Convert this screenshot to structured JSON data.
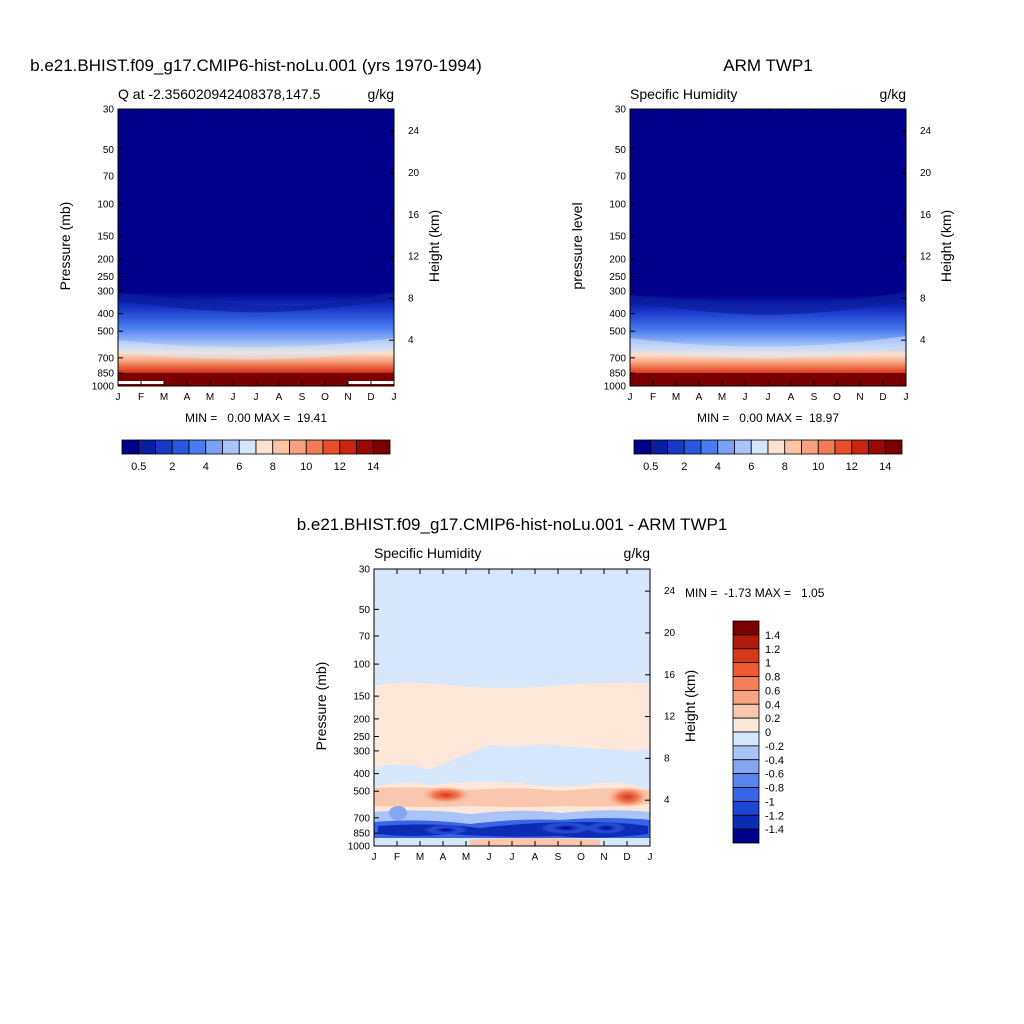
{
  "chart_data": [
    {
      "type": "heatmap",
      "title": "b.e21.BHIST.f09_g17.CMIP6-hist-noLu.001 (yrs 1970-1994)",
      "subtitle_left": "Q at -2.356020942408378,147.5",
      "subtitle_right": "g/kg",
      "ylabel": "Pressure (mb)",
      "ylabel_right": "Height (km)",
      "months": [
        "J",
        "F",
        "M",
        "A",
        "M",
        "J",
        "J",
        "A",
        "S",
        "O",
        "N",
        "D",
        "J"
      ],
      "pressure_ticks": [
        "30",
        "50",
        "70",
        "100",
        "150",
        "200",
        "250",
        "300",
        "400",
        "500",
        "700",
        "850",
        "1000"
      ],
      "height_ticks": [
        "24",
        "20",
        "16",
        "12",
        "8",
        "4"
      ],
      "stats": "MIN =   0.00 MAX =  19.41",
      "min": 0.0,
      "max": 19.41,
      "contour_levels": [
        0.5,
        1,
        2,
        3,
        4,
        5,
        6,
        7,
        8,
        9,
        10,
        11,
        12,
        13,
        14
      ],
      "colorbar_labels": [
        "0.5",
        "2",
        "4",
        "6",
        "8",
        "10",
        "12",
        "14"
      ]
    },
    {
      "type": "heatmap",
      "title": "ARM TWP1",
      "subtitle_left": "Specific Humidity",
      "subtitle_right": "g/kg",
      "ylabel": "pressure level",
      "ylabel_right": "Height (km)",
      "months": [
        "J",
        "F",
        "M",
        "A",
        "M",
        "J",
        "J",
        "A",
        "S",
        "O",
        "N",
        "D",
        "J"
      ],
      "pressure_ticks": [
        "30",
        "50",
        "70",
        "100",
        "150",
        "200",
        "250",
        "300",
        "400",
        "500",
        "700",
        "850",
        "1000"
      ],
      "height_ticks": [
        "24",
        "20",
        "16",
        "12",
        "8",
        "4"
      ],
      "stats": "MIN =   0.00 MAX =  18.97",
      "min": 0.0,
      "max": 18.97,
      "contour_levels": [
        0.5,
        1,
        2,
        3,
        4,
        5,
        6,
        7,
        8,
        9,
        10,
        11,
        12,
        13,
        14
      ],
      "colorbar_labels": [
        "0.5",
        "2",
        "4",
        "6",
        "8",
        "10",
        "12",
        "14"
      ]
    },
    {
      "type": "heatmap",
      "title": "b.e21.BHIST.f09_g17.CMIP6-hist-noLu.001 - ARM TWP1",
      "subtitle_left": "Specific Humidity",
      "subtitle_right": "g/kg",
      "ylabel": "Pressure (mb)",
      "ylabel_right": "Height (km)",
      "months": [
        "J",
        "F",
        "M",
        "A",
        "M",
        "J",
        "J",
        "A",
        "S",
        "O",
        "N",
        "D",
        "J"
      ],
      "pressure_ticks": [
        "30",
        "50",
        "70",
        "100",
        "150",
        "200",
        "250",
        "300",
        "400",
        "500",
        "700",
        "850",
        "1000"
      ],
      "height_ticks": [
        "24",
        "20",
        "16",
        "12",
        "8",
        "4"
      ],
      "stats": "MIN =  -1.73 MAX =   1.05",
      "min": -1.73,
      "max": 1.05,
      "contour_levels": [
        -1.4,
        -1.2,
        -1,
        -0.8,
        -0.6,
        -0.4,
        -0.2,
        0,
        0.2,
        0.4,
        0.6,
        0.8,
        1,
        1.2,
        1.4
      ],
      "colorbar_labels": [
        "1.4",
        "1.2",
        "1",
        "0.8",
        "0.6",
        "0.4",
        "0.2",
        "0",
        "-0.2",
        "-0.4",
        "-0.6",
        "-0.8",
        "-1",
        "-1.2",
        "-1.4"
      ]
    }
  ],
  "colors": {
    "seq": [
      "#00008b",
      "#0a1fa0",
      "#1838c8",
      "#2a58e0",
      "#4a7cf0",
      "#7ba1f5",
      "#a9c5f7",
      "#d6e6fb",
      "#fde3cf",
      "#fbc4a5",
      "#f7a27f",
      "#f27a55",
      "#e64e2c",
      "#c8250f",
      "#9a0806",
      "#7a0000"
    ],
    "div": [
      "#7a0000",
      "#b01a0a",
      "#d8381a",
      "#ef5a30",
      "#f48059",
      "#f6a482",
      "#f9c7ad",
      "#fde7d8",
      "#d6e6fb",
      "#a9c5f7",
      "#84a6f3",
      "#5c84ee",
      "#3a64e6",
      "#1f46d1",
      "#0c2cb4",
      "#00008b"
    ]
  }
}
